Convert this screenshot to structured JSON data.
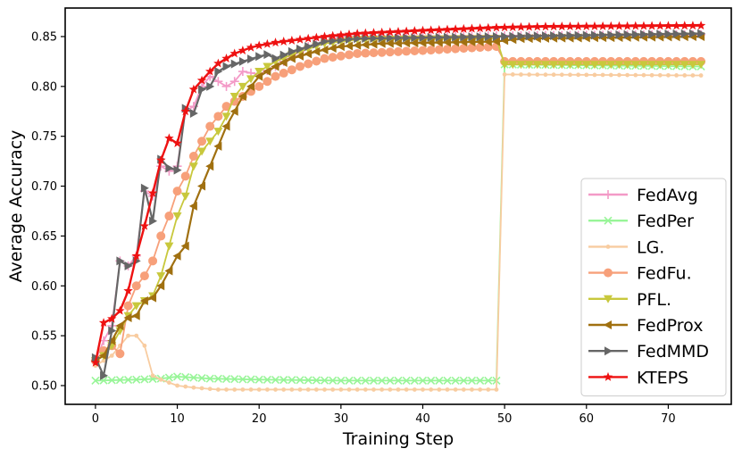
{
  "chart_data": {
    "type": "line",
    "title": "",
    "xlabel": "Training Step",
    "ylabel": "Average Accuracy",
    "xlim": [
      -3.7,
      77.7
    ],
    "ylim": [
      0.4812,
      0.8786
    ],
    "xticks": [
      0,
      10,
      20,
      30,
      40,
      50,
      60,
      70
    ],
    "yticks": [
      0.5,
      0.55,
      0.6,
      0.65,
      0.7,
      0.75,
      0.8,
      0.85
    ],
    "xtick_labels": [
      "0",
      "10",
      "20",
      "30",
      "40",
      "50",
      "60",
      "70"
    ],
    "ytick_labels": [
      "0.50",
      "0.55",
      "0.60",
      "0.65",
      "0.70",
      "0.75",
      "0.80",
      "0.85"
    ],
    "legend_position": "lower-right",
    "steps": 75,
    "series": [
      {
        "name": "FedAvg",
        "color": "#f39ac7",
        "marker": "plus",
        "keyframes": [
          [
            0,
            0.525
          ],
          [
            1,
            0.545
          ],
          [
            2,
            0.56
          ],
          [
            3,
            0.625
          ],
          [
            4,
            0.62
          ],
          [
            5,
            0.63
          ],
          [
            6,
            0.695
          ],
          [
            7,
            0.69
          ],
          [
            8,
            0.72
          ],
          [
            9,
            0.715
          ],
          [
            10,
            0.72
          ],
          [
            11,
            0.775
          ],
          [
            12,
            0.78
          ],
          [
            13,
            0.8
          ],
          [
            14,
            0.81
          ],
          [
            15,
            0.805
          ],
          [
            16,
            0.8
          ],
          [
            17,
            0.805
          ],
          [
            18,
            0.815
          ],
          [
            20,
            0.812
          ],
          [
            22,
            0.82
          ],
          [
            24,
            0.83
          ],
          [
            26,
            0.84
          ],
          [
            28,
            0.845
          ],
          [
            30,
            0.85
          ],
          [
            74,
            0.852
          ]
        ]
      },
      {
        "name": "FedPer",
        "color": "#98f598",
        "marker": "x",
        "keyframes": [
          [
            0,
            0.505
          ],
          [
            5,
            0.506
          ],
          [
            8,
            0.507
          ],
          [
            10,
            0.509
          ],
          [
            12,
            0.508
          ],
          [
            14,
            0.507
          ],
          [
            20,
            0.506
          ],
          [
            30,
            0.505
          ],
          [
            49,
            0.505
          ],
          [
            50,
            0.822
          ],
          [
            74,
            0.82
          ]
        ]
      },
      {
        "name": "LG.",
        "color": "#f8cca0",
        "marker": "dot",
        "keyframes": [
          [
            0,
            0.52
          ],
          [
            1,
            0.525
          ],
          [
            2,
            0.53
          ],
          [
            3,
            0.54
          ],
          [
            4,
            0.55
          ],
          [
            5,
            0.55
          ],
          [
            6,
            0.54
          ],
          [
            7,
            0.51
          ],
          [
            8,
            0.506
          ],
          [
            10,
            0.5
          ],
          [
            12,
            0.498
          ],
          [
            15,
            0.496
          ],
          [
            30,
            0.496
          ],
          [
            49,
            0.496
          ],
          [
            50,
            0.812
          ],
          [
            74,
            0.811
          ]
        ]
      },
      {
        "name": "FedFu.",
        "color": "#f7a07a",
        "marker": "circle",
        "keyframes": [
          [
            0,
            0.525
          ],
          [
            1,
            0.535
          ],
          [
            2,
            0.54
          ],
          [
            3,
            0.532
          ],
          [
            4,
            0.58
          ],
          [
            5,
            0.6
          ],
          [
            6,
            0.61
          ],
          [
            7,
            0.625
          ],
          [
            8,
            0.65
          ],
          [
            9,
            0.67
          ],
          [
            10,
            0.695
          ],
          [
            11,
            0.71
          ],
          [
            12,
            0.73
          ],
          [
            13,
            0.745
          ],
          [
            14,
            0.76
          ],
          [
            15,
            0.77
          ],
          [
            16,
            0.78
          ],
          [
            18,
            0.79
          ],
          [
            20,
            0.8
          ],
          [
            22,
            0.81
          ],
          [
            25,
            0.82
          ],
          [
            28,
            0.828
          ],
          [
            32,
            0.833
          ],
          [
            40,
            0.836
          ],
          [
            49,
            0.84
          ],
          [
            50,
            0.825
          ],
          [
            74,
            0.825
          ]
        ]
      },
      {
        "name": "PFL.",
        "color": "#c8c83c",
        "marker": "triangle-down",
        "keyframes": [
          [
            0,
            0.525
          ],
          [
            1,
            0.53
          ],
          [
            2,
            0.54
          ],
          [
            3,
            0.555
          ],
          [
            4,
            0.57
          ],
          [
            5,
            0.58
          ],
          [
            6,
            0.585
          ],
          [
            7,
            0.59
          ],
          [
            8,
            0.61
          ],
          [
            9,
            0.64
          ],
          [
            10,
            0.67
          ],
          [
            11,
            0.69
          ],
          [
            12,
            0.72
          ],
          [
            13,
            0.735
          ],
          [
            14,
            0.745
          ],
          [
            15,
            0.755
          ],
          [
            16,
            0.77
          ],
          [
            17,
            0.79
          ],
          [
            18,
            0.8
          ],
          [
            20,
            0.815
          ],
          [
            22,
            0.825
          ],
          [
            25,
            0.835
          ],
          [
            28,
            0.843
          ],
          [
            32,
            0.847
          ],
          [
            49,
            0.848
          ],
          [
            50,
            0.822
          ],
          [
            74,
            0.822
          ]
        ]
      },
      {
        "name": "FedProx",
        "color": "#a07010",
        "marker": "triangle-left",
        "keyframes": [
          [
            0,
            0.525
          ],
          [
            1,
            0.53
          ],
          [
            2,
            0.545
          ],
          [
            3,
            0.56
          ],
          [
            4,
            0.568
          ],
          [
            5,
            0.57
          ],
          [
            6,
            0.585
          ],
          [
            7,
            0.588
          ],
          [
            8,
            0.6
          ],
          [
            9,
            0.615
          ],
          [
            10,
            0.63
          ],
          [
            11,
            0.64
          ],
          [
            12,
            0.68
          ],
          [
            13,
            0.7
          ],
          [
            14,
            0.72
          ],
          [
            15,
            0.74
          ],
          [
            16,
            0.76
          ],
          [
            17,
            0.775
          ],
          [
            18,
            0.79
          ],
          [
            19,
            0.8
          ],
          [
            20,
            0.81
          ],
          [
            22,
            0.82
          ],
          [
            24,
            0.828
          ],
          [
            27,
            0.835
          ],
          [
            30,
            0.84
          ],
          [
            35,
            0.843
          ],
          [
            49,
            0.845
          ],
          [
            52,
            0.848
          ],
          [
            74,
            0.85
          ]
        ]
      },
      {
        "name": "FedMMD",
        "color": "#666666",
        "marker": "triangle-right",
        "keyframes": [
          [
            0,
            0.528
          ],
          [
            1,
            0.51
          ],
          [
            2,
            0.555
          ],
          [
            3,
            0.625
          ],
          [
            4,
            0.62
          ],
          [
            5,
            0.625
          ],
          [
            6,
            0.698
          ],
          [
            7,
            0.665
          ],
          [
            8,
            0.727
          ],
          [
            9,
            0.718
          ],
          [
            10,
            0.716
          ],
          [
            11,
            0.778
          ],
          [
            12,
            0.773
          ],
          [
            13,
            0.797
          ],
          [
            14,
            0.8
          ],
          [
            15,
            0.815
          ],
          [
            16,
            0.82
          ],
          [
            18,
            0.825
          ],
          [
            20,
            0.83
          ],
          [
            21,
            0.832
          ],
          [
            22,
            0.828
          ],
          [
            24,
            0.835
          ],
          [
            26,
            0.84
          ],
          [
            28,
            0.845
          ],
          [
            32,
            0.848
          ],
          [
            49,
            0.85
          ],
          [
            74,
            0.853
          ]
        ]
      },
      {
        "name": "KTEPS",
        "color": "#ee1111",
        "marker": "star",
        "keyframes": [
          [
            0,
            0.523
          ],
          [
            1,
            0.563
          ],
          [
            2,
            0.567
          ],
          [
            3,
            0.575
          ],
          [
            4,
            0.595
          ],
          [
            5,
            0.63
          ],
          [
            6,
            0.66
          ],
          [
            7,
            0.693
          ],
          [
            8,
            0.726
          ],
          [
            9,
            0.748
          ],
          [
            10,
            0.743
          ],
          [
            11,
            0.775
          ],
          [
            12,
            0.797
          ],
          [
            13,
            0.806
          ],
          [
            14,
            0.815
          ],
          [
            15,
            0.823
          ],
          [
            16,
            0.828
          ],
          [
            17,
            0.833
          ],
          [
            18,
            0.836
          ],
          [
            19,
            0.839
          ],
          [
            20,
            0.841
          ],
          [
            22,
            0.844
          ],
          [
            24,
            0.846
          ],
          [
            26,
            0.848
          ],
          [
            28,
            0.85
          ],
          [
            32,
            0.853
          ],
          [
            40,
            0.856
          ],
          [
            49,
            0.859
          ],
          [
            55,
            0.86
          ],
          [
            74,
            0.861
          ]
        ]
      }
    ]
  }
}
